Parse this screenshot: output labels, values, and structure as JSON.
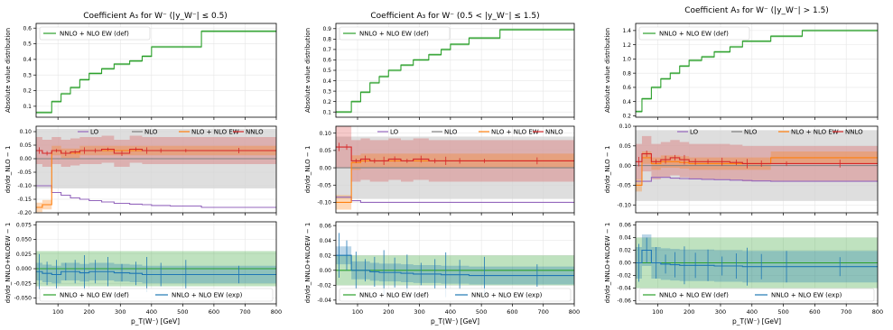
{
  "colors": {
    "green": "#2ca02c",
    "purple": "#9467bd",
    "gray": "#7f7f7f",
    "orange": "#ff7f0e",
    "red": "#d62728",
    "blue": "#1f77b4",
    "band_gray": "#d3d3d3"
  },
  "shared": {
    "xlabel": "p_T(W⁻) [GeV]",
    "xticks": [
      "100",
      "200",
      "300",
      "400",
      "500",
      "600",
      "700",
      "800"
    ],
    "xlim": [
      30,
      800
    ],
    "top_ylabel": "Absolute value distribution",
    "mid_ylabel": "dσ/dσ_NLO − 1",
    "bot_ylabel": "dσ/dσ_NNLO+NLOEW − 1",
    "legend_top": [
      "NNLO + NLO EW (def)"
    ],
    "legend_mid": [
      "LO",
      "NLO",
      "NLO + NLO EW",
      "NNLO"
    ],
    "legend_bot": [
      "NNLO + NLO EW (def)",
      "NNLO + NLO EW (exp)"
    ]
  },
  "chart_data": [
    {
      "type": "line",
      "title": "Coefficient A₃ for W⁻ (|y_W⁻| ≤ 0.5)",
      "x_edges": [
        30,
        50,
        80,
        110,
        140,
        170,
        200,
        240,
        280,
        330,
        370,
        400,
        460,
        560,
        800
      ],
      "top": {
        "ylim": [
          0.03,
          0.63
        ],
        "yticks": [
          "0.1",
          "0.2",
          "0.3",
          "0.4",
          "0.5",
          "0.6"
        ],
        "values": [
          0.06,
          0.06,
          0.13,
          0.18,
          0.22,
          0.27,
          0.31,
          0.34,
          0.37,
          0.39,
          0.42,
          0.48,
          0.48,
          0.58
        ]
      },
      "mid": {
        "ylim": [
          -0.2,
          0.12
        ],
        "yticks": [
          "0.10",
          "0.05",
          "0.00",
          "-0.05",
          "-0.10",
          "-0.15",
          "-0.20"
        ],
        "lo": [
          -0.1,
          -0.1,
          -0.125,
          -0.135,
          -0.145,
          -0.15,
          -0.155,
          -0.16,
          -0.165,
          -0.168,
          -0.17,
          -0.173,
          -0.175,
          -0.18
        ],
        "nlo": [
          0,
          0,
          0,
          0,
          0,
          0,
          0,
          0,
          0,
          0,
          0,
          0,
          0,
          0
        ],
        "nlo_ew": [
          -0.18,
          -0.17,
          0.03,
          0.02,
          0.02,
          0.03,
          0.03,
          0.03,
          0.03,
          0.03,
          0.03,
          0.03,
          0.03,
          0.03
        ],
        "nnlo": [
          0.03,
          0.02,
          0.03,
          0.02,
          0.025,
          0.03,
          0.03,
          0.035,
          0.02,
          0.035,
          0.03,
          0.03,
          0.03,
          0.03
        ],
        "nlo_band": 0.11,
        "nnlo_band": 0.05
      },
      "bot": {
        "ylim": [
          -0.06,
          0.08
        ],
        "yticks": [
          "0.075",
          "0.050",
          "0.025",
          "0.000",
          "-0.025",
          "-0.050"
        ],
        "def": [
          0,
          0,
          0,
          0,
          0,
          0,
          0,
          0,
          0,
          0,
          0,
          0,
          0,
          0
        ],
        "exp": [
          -0.005,
          -0.008,
          -0.01,
          -0.005,
          -0.005,
          -0.007,
          -0.005,
          -0.005,
          -0.007,
          -0.008,
          -0.01,
          -0.01,
          -0.01,
          -0.01
        ],
        "def_band": 0.03,
        "exp_band": 0.015
      }
    },
    {
      "type": "line",
      "title": "Coefficient A₃ for W⁻ (0.5 < |y_W⁻| ≤ 1.5)",
      "x_edges": [
        30,
        50,
        80,
        110,
        140,
        170,
        200,
        240,
        280,
        330,
        370,
        400,
        460,
        560,
        800
      ],
      "top": {
        "ylim": [
          0.05,
          0.95
        ],
        "yticks": [
          "0.1",
          "0.2",
          "0.3",
          "0.4",
          "0.5",
          "0.6",
          "0.7",
          "0.8",
          "0.9"
        ],
        "values": [
          0.1,
          0.1,
          0.2,
          0.29,
          0.38,
          0.44,
          0.5,
          0.55,
          0.6,
          0.65,
          0.7,
          0.75,
          0.81,
          0.89
        ]
      },
      "mid": {
        "ylim": [
          -0.13,
          0.12
        ],
        "yticks": [
          "0.10",
          "0.05",
          "0.00",
          "-0.05",
          "-0.10"
        ],
        "lo": [
          -0.085,
          -0.085,
          -0.095,
          -0.1,
          -0.1,
          -0.1,
          -0.1,
          -0.1,
          -0.1,
          -0.1,
          -0.1,
          -0.1,
          -0.1,
          -0.1
        ],
        "nlo": [
          0,
          0,
          0,
          0,
          0,
          0,
          0,
          0,
          0,
          0,
          0,
          0,
          0,
          0
        ],
        "nlo_ew": [
          -0.1,
          -0.1,
          0.015,
          0.02,
          0.02,
          0.02,
          0.02,
          0.02,
          0.02,
          0.02,
          0.02,
          0.02,
          0.02,
          0.02
        ],
        "nnlo": [
          0.06,
          0.06,
          0.02,
          0.025,
          0.02,
          0.02,
          0.025,
          0.02,
          0.025,
          0.02,
          0.02,
          0.02,
          0.02,
          0.02
        ],
        "nlo_band": 0.09,
        "nnlo_band": 0.06
      },
      "bot": {
        "ylim": [
          -0.045,
          0.065
        ],
        "yticks": [
          "0.06",
          "0.04",
          "0.02",
          "0.00",
          "-0.02",
          "-0.04"
        ],
        "def": [
          0,
          0,
          0,
          0,
          0,
          0,
          0,
          0,
          0,
          0,
          0,
          0,
          0,
          0
        ],
        "exp": [
          0.02,
          0.02,
          0.0,
          0.0,
          -0.002,
          -0.003,
          -0.003,
          -0.004,
          -0.005,
          -0.005,
          -0.006,
          -0.006,
          -0.007,
          -0.007
        ],
        "def_band": 0.02,
        "exp_band": 0.012
      }
    },
    {
      "type": "line",
      "title": "Coefficient A₃ for W⁻ (|y_W⁻| > 1.5)",
      "x_edges": [
        30,
        50,
        80,
        110,
        140,
        170,
        200,
        240,
        280,
        330,
        370,
        400,
        460,
        560,
        800
      ],
      "top": {
        "ylim": [
          0.18,
          1.5
        ],
        "yticks": [
          "0.2",
          "0.4",
          "0.6",
          "0.8",
          "1.0",
          "1.2",
          "1.4"
        ],
        "values": [
          0.26,
          0.44,
          0.6,
          0.72,
          0.8,
          0.9,
          0.98,
          1.03,
          1.1,
          1.17,
          1.25,
          1.25,
          1.32,
          1.4
        ]
      },
      "mid": {
        "ylim": [
          -0.12,
          0.1
        ],
        "yticks": [
          "0.10",
          "0.05",
          "0.00",
          "-0.05",
          "-0.10"
        ],
        "lo": [
          -0.04,
          -0.04,
          -0.03,
          -0.03,
          -0.032,
          -0.033,
          -0.034,
          -0.035,
          -0.036,
          -0.037,
          -0.038,
          -0.039,
          -0.04,
          -0.04
        ],
        "nlo": [
          0,
          0,
          0,
          0,
          0,
          0,
          0,
          0,
          0,
          0,
          0,
          0,
          0,
          0
        ],
        "nlo_ew": [
          -0.05,
          0.02,
          0.005,
          0.01,
          0.01,
          0.008,
          0.005,
          0.005,
          0.005,
          0.005,
          0.005,
          0.005,
          0.02,
          0.02
        ],
        "nnlo": [
          0.01,
          0.03,
          0.01,
          0.015,
          0.02,
          0.015,
          0.01,
          0.01,
          0.01,
          0.008,
          0.005,
          0.005,
          0.005,
          0.005
        ],
        "nlo_band": 0.09,
        "nnlo_band": 0.045
      },
      "bot": {
        "ylim": [
          -0.065,
          0.065
        ],
        "yticks": [
          "0.06",
          "0.04",
          "0.02",
          "0.00",
          "-0.02",
          "-0.04",
          "-0.06"
        ],
        "def": [
          0,
          0,
          0,
          0,
          0,
          0,
          0,
          0,
          0,
          0,
          0,
          0,
          0,
          0
        ],
        "exp": [
          0.0,
          0.02,
          0.0,
          -0.002,
          -0.003,
          -0.004,
          -0.004,
          -0.004,
          -0.005,
          -0.005,
          -0.006,
          -0.006,
          -0.006,
          -0.006
        ],
        "def_band": 0.04,
        "exp_band": 0.025
      }
    }
  ]
}
